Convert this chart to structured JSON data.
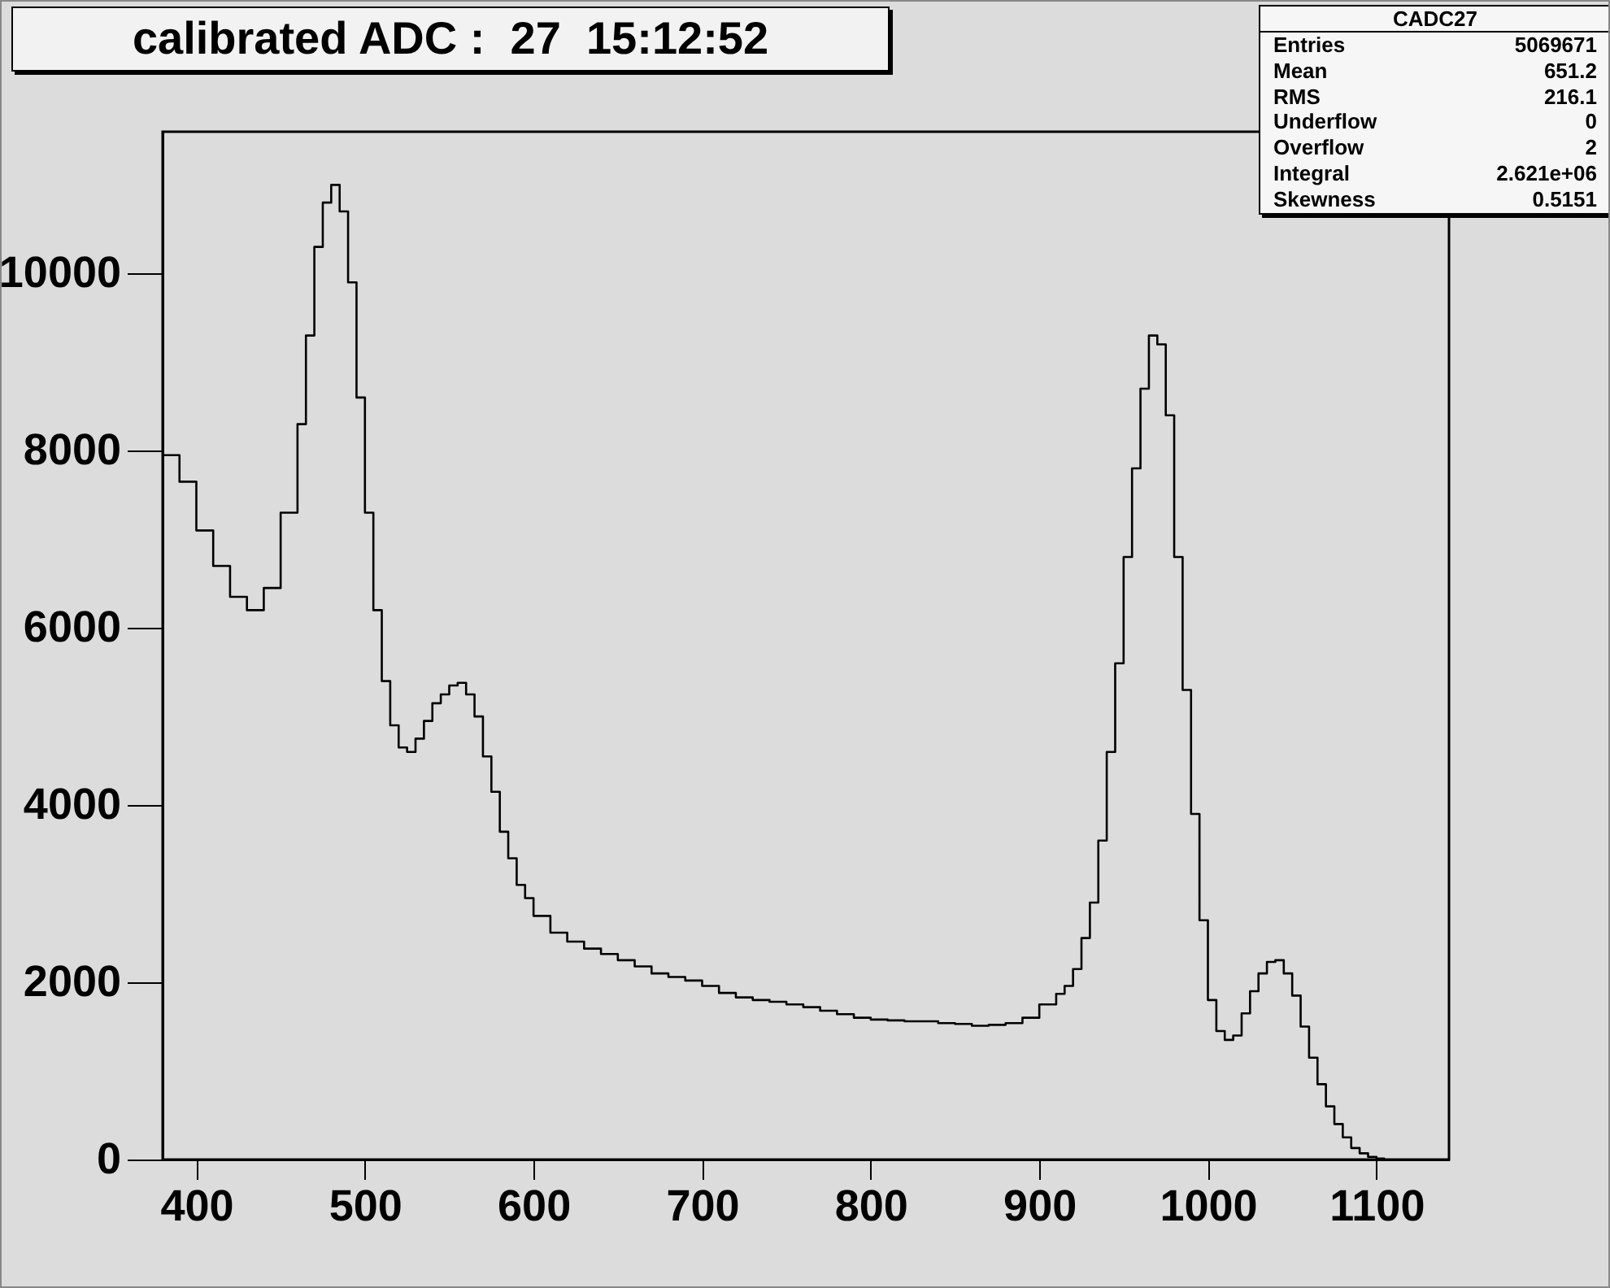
{
  "chart_data": {
    "type": "histogram",
    "title": "calibrated ADC :  27  15:12:52",
    "annotations": [
      "CADC27",
      "Entries 5069671",
      "Mean 651.2",
      "RMS 216.1",
      "Underflow 0",
      "Overflow 2",
      "Integral 2.621e+06",
      "Skewness 0.5151"
    ],
    "color": "#000000",
    "bins": [
      380,
      390,
      400,
      410,
      420,
      430,
      440,
      450,
      460,
      465,
      470,
      475,
      480,
      485,
      490,
      495,
      500,
      505,
      510,
      515,
      520,
      525,
      530,
      535,
      540,
      545,
      550,
      555,
      560,
      565,
      570,
      575,
      580,
      585,
      590,
      595,
      600,
      610,
      620,
      630,
      640,
      650,
      660,
      670,
      680,
      690,
      700,
      710,
      720,
      730,
      740,
      750,
      760,
      770,
      780,
      790,
      800,
      810,
      820,
      830,
      840,
      850,
      860,
      870,
      880,
      890,
      900,
      910,
      915,
      920,
      925,
      930,
      935,
      940,
      945,
      950,
      955,
      960,
      965,
      970,
      975,
      980,
      985,
      990,
      995,
      1000,
      1005,
      1010,
      1015,
      1020,
      1025,
      1030,
      1035,
      1040,
      1045,
      1050,
      1055,
      1060,
      1065,
      1070,
      1075,
      1080,
      1085,
      1090,
      1095,
      1100,
      1105
    ],
    "values": [
      7950,
      7650,
      7100,
      6700,
      6350,
      6200,
      6450,
      7300,
      8300,
      9300,
      10300,
      10800,
      11000,
      10700,
      9900,
      8600,
      7300,
      6200,
      5400,
      4900,
      4650,
      4600,
      4750,
      4950,
      5150,
      5250,
      5350,
      5380,
      5250,
      5000,
      4550,
      4150,
      3700,
      3400,
      3100,
      2950,
      2750,
      2560,
      2460,
      2380,
      2320,
      2250,
      2180,
      2100,
      2060,
      2020,
      1960,
      1880,
      1830,
      1800,
      1780,
      1750,
      1720,
      1680,
      1640,
      1600,
      1580,
      1570,
      1560,
      1560,
      1540,
      1530,
      1510,
      1520,
      1540,
      1600,
      1750,
      1870,
      1960,
      2150,
      2500,
      2900,
      3600,
      4600,
      5600,
      6800,
      7800,
      8700,
      9300,
      9200,
      8400,
      6800,
      5300,
      3900,
      2700,
      1800,
      1450,
      1350,
      1400,
      1650,
      1900,
      2100,
      2230,
      2250,
      2100,
      1850,
      1500,
      1150,
      850,
      600,
      400,
      250,
      130,
      70,
      30,
      10
    ],
    "xlim": [
      380,
      1143
    ],
    "ylim": [
      0,
      11600
    ],
    "xticks": [
      400,
      500,
      600,
      700,
      800,
      900,
      1000,
      1100
    ],
    "yticks": [
      0,
      2000,
      4000,
      6000,
      8000,
      10000
    ],
    "grid": false
  }
}
